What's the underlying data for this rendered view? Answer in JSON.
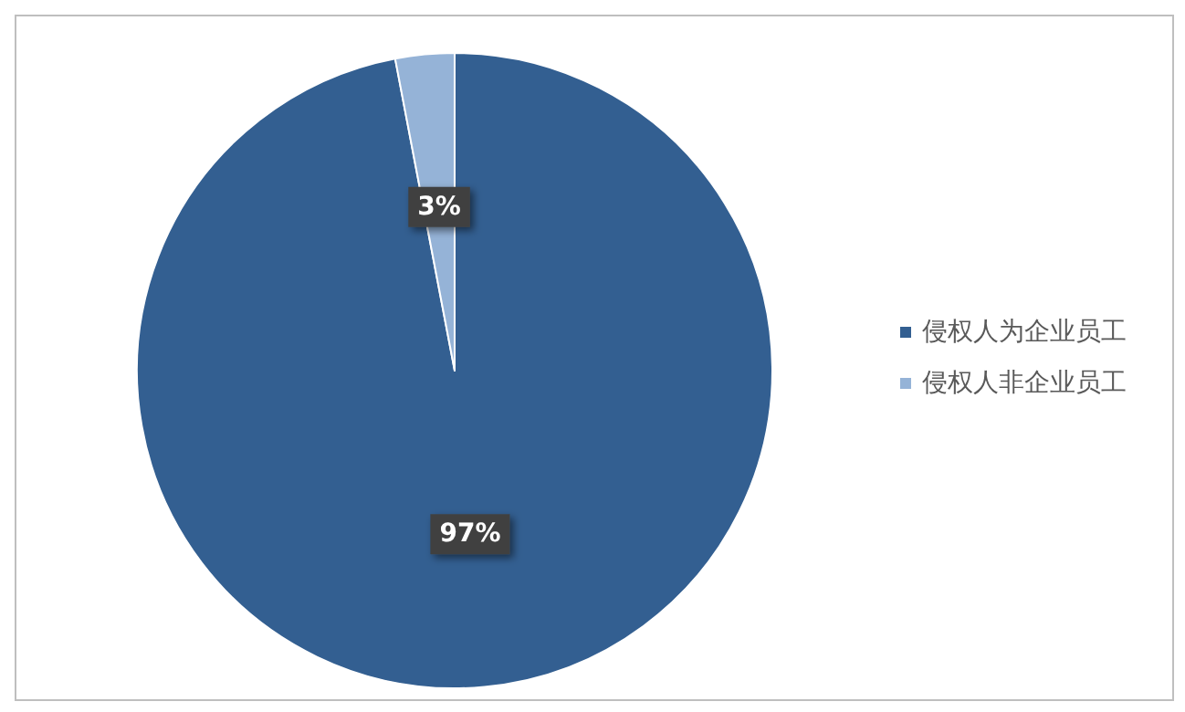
{
  "chart_data": {
    "type": "pie",
    "categories": [
      "侵权人为企业员工",
      "侵权人非企业员工"
    ],
    "values": [
      97,
      3
    ],
    "colors": [
      "#335f91",
      "#95b3d7"
    ],
    "value_labels": [
      "97%",
      "3%"
    ],
    "legend": "right"
  }
}
